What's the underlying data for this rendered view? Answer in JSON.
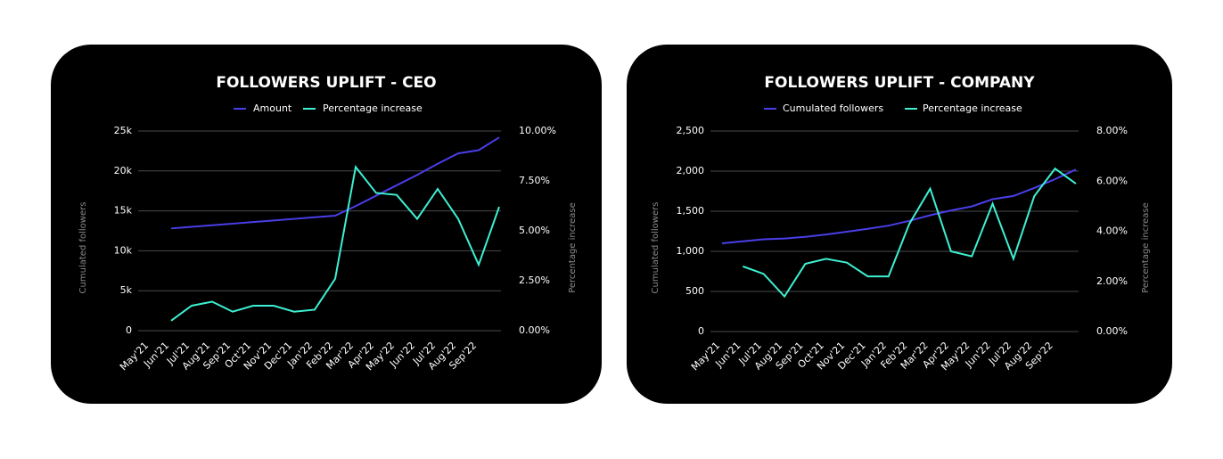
{
  "chart_data": [
    {
      "type": "line",
      "title": "FOLLOWERS UPLIFT - CEO",
      "ylabel": "Cumulated followers",
      "y2label": "Percentage increase",
      "categories": [
        "May'21",
        "Jun'21",
        "Jul'21",
        "Aug'21",
        "Sep'21",
        "Oct'21",
        "Nov'21",
        "Dec'21",
        "Jan'22",
        "Feb'22",
        "Mar'22",
        "Apr'22",
        "May'22",
        "Jun'22",
        "Jul'22",
        "Aug'22",
        "Sep'22",
        null
      ],
      "series": [
        {
          "name": "Amount",
          "color": "#4a3ee8",
          "values": [
            null,
            12800,
            13000,
            13200,
            13400,
            13600,
            13800,
            14000,
            14200,
            14400,
            15600,
            16900,
            18200,
            19500,
            20900,
            22200,
            22600,
            24200
          ]
        },
        {
          "name": "Percentage increase",
          "color": "#3ef0d2",
          "axis": "y2",
          "values": [
            null,
            0.5,
            1.25,
            1.45,
            0.95,
            1.25,
            1.25,
            0.95,
            1.05,
            2.6,
            8.2,
            6.9,
            6.8,
            5.6,
            7.1,
            5.6,
            3.3,
            6.2
          ]
        }
      ],
      "ylim": [
        0,
        25000
      ],
      "yticks": [
        0,
        {
          "value": 5000,
          "label": "5k"
        },
        {
          "value": 10000,
          "label": "10k"
        },
        {
          "value": 15000,
          "label": "15k"
        },
        {
          "value": 20000,
          "label": "20k"
        },
        {
          "value": 25000,
          "label": "25k"
        }
      ],
      "y2lim": [
        0,
        10
      ],
      "y2ticks": [
        {
          "value": 0,
          "label": "0.00%"
        },
        {
          "value": 2.5,
          "label": "2.50%"
        },
        {
          "value": 5,
          "label": "5.00%"
        },
        {
          "value": 7.5,
          "label": "7.50%"
        },
        {
          "value": 10,
          "label": "10.00%"
        }
      ],
      "grid": true,
      "legend": "top"
    },
    {
      "type": "line",
      "title": "FOLLOWERS UPLIFT - COMPANY",
      "ylabel": "Cumulated followers",
      "y2label": "Percentage increase",
      "categories": [
        "May'21",
        "Jun'21",
        "Jul'21",
        "Aug'21",
        "Sep'21",
        "Oct'21",
        "Nov'21",
        "Dec'21",
        "Jan'22",
        "Feb'22",
        "Mar'22",
        "Apr'22",
        "May'22",
        "Jun'22",
        "Jul'22",
        "Aug'22",
        "Sep'22",
        null
      ],
      "series": [
        {
          "name": "Cumulated followers",
          "color": "#4a3ee8",
          "values": [
            1100,
            1125,
            1150,
            1160,
            1180,
            1210,
            1245,
            1280,
            1320,
            1380,
            1450,
            1510,
            1560,
            1650,
            1690,
            1790,
            1900,
            2020
          ]
        },
        {
          "name": "Percentage increase",
          "color": "#3ef0d2",
          "axis": "y2",
          "values": [
            null,
            2.6,
            2.3,
            1.4,
            2.7,
            2.9,
            2.75,
            2.2,
            2.2,
            4.3,
            5.7,
            3.2,
            3.0,
            5.1,
            2.9,
            5.4,
            6.5,
            5.9
          ]
        }
      ],
      "ylim": [
        0,
        2500
      ],
      "yticks": [
        0,
        500,
        {
          "value": 1000,
          "label": "1,000"
        },
        {
          "value": 1500,
          "label": "1,500"
        },
        {
          "value": 2000,
          "label": "2,000"
        },
        {
          "value": 2500,
          "label": "2,500"
        }
      ],
      "y2lim": [
        0,
        8
      ],
      "y2ticks": [
        {
          "value": 0,
          "label": "0.00%"
        },
        {
          "value": 2,
          "label": "2.00%"
        },
        {
          "value": 4,
          "label": "4.00%"
        },
        {
          "value": 6,
          "label": "6.00%"
        },
        {
          "value": 8,
          "label": "8.00%"
        }
      ],
      "grid": true,
      "legend": "top"
    }
  ]
}
